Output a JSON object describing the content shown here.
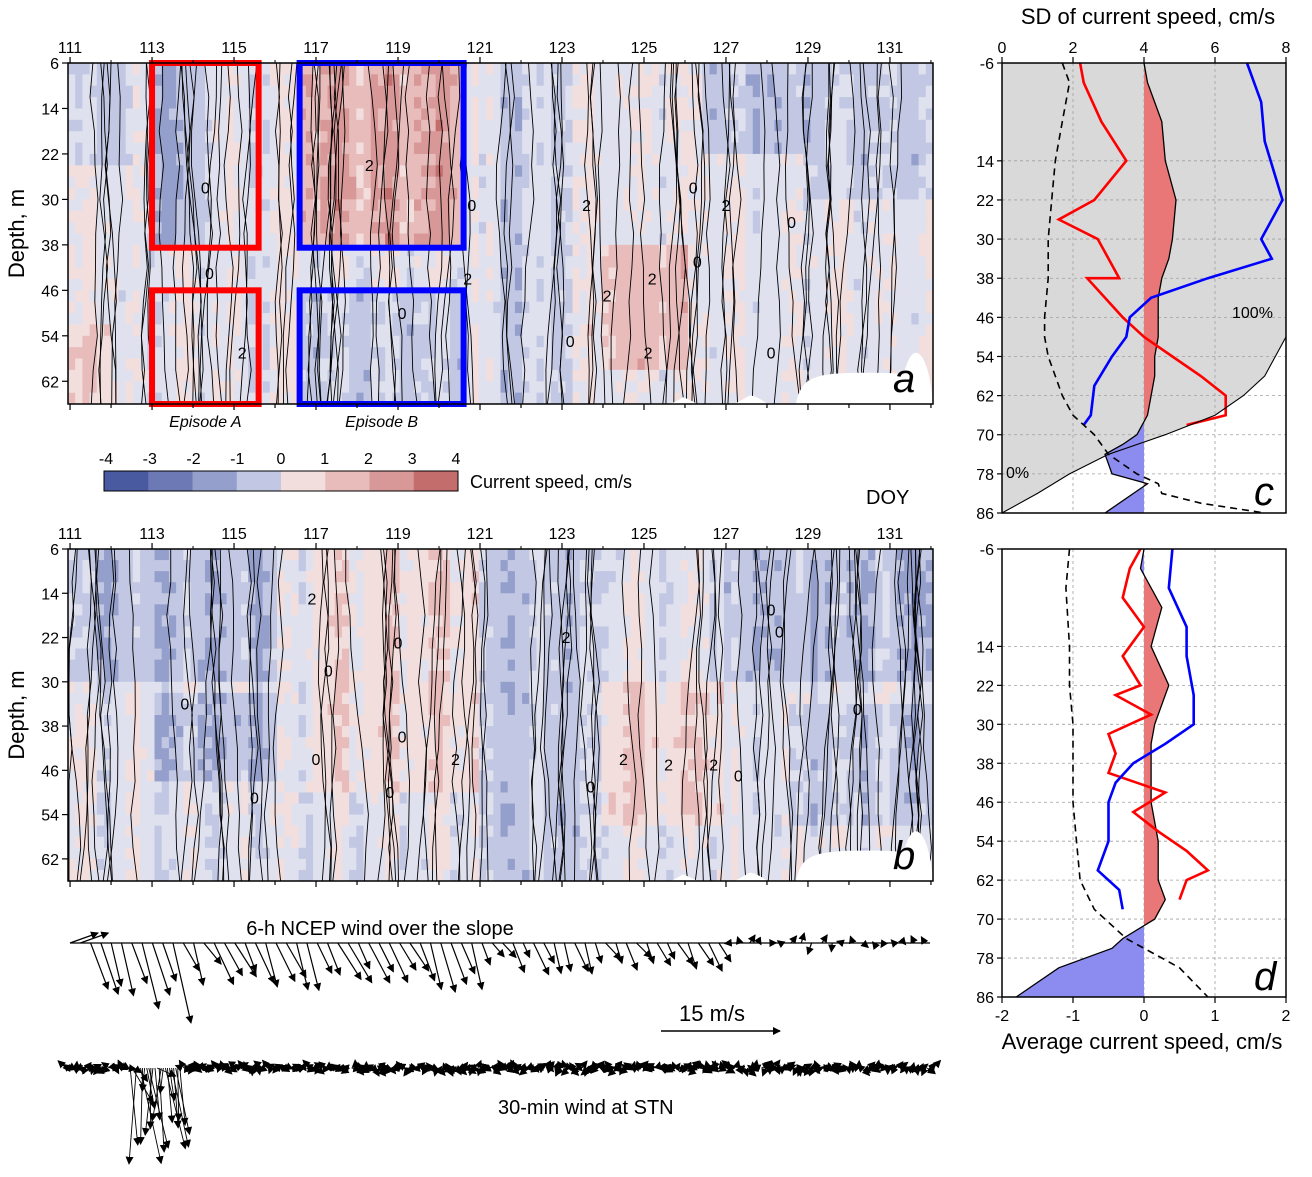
{
  "colors": {
    "neg4": "#4a5aa0",
    "neg3": "#6c79b5",
    "neg2": "#959fcc",
    "neg1": "#c2c8e3",
    "zero": "#dfe1ee",
    "pos1": "#f3dede",
    "pos2": "#e9bcbc",
    "pos3": "#d89898",
    "pos4": "#c46d6d",
    "episode_a": "#ff0000",
    "episode_b": "#0000ff",
    "profile_red": "#ff0000",
    "profile_blue": "#0000ff",
    "fill_pos": "#e97777",
    "fill_neg": "#8c8cf0",
    "shade_grey": "#d9d9d9"
  },
  "labels": {
    "doy": "DOY",
    "depth_axis": "Depth, m",
    "colorbar_title": "Current speed, cm/s",
    "episode_a": "Episode A",
    "episode_b": "Episode B",
    "sd_axis": "SD of current speed, cm/s",
    "avg_axis": "Average current speed, cm/s",
    "pct_100": "100%",
    "pct_0": "0%",
    "wind_ncep": "6-h NCEP wind over the slope",
    "wind_scale": "15 m/s",
    "wind_stn": "30-min wind at STN",
    "panel_a": "a",
    "panel_b": "b",
    "panel_c": "c",
    "panel_d": "d",
    "contour_label_zero": "0",
    "contour_label_two": "2"
  },
  "chart_data": [
    {
      "id": "a",
      "type": "heatmap",
      "x_label": "DOY",
      "ylabel": "Depth, m",
      "x_ticks": [
        111,
        113,
        115,
        117,
        119,
        121,
        123,
        125,
        127,
        129,
        131
      ],
      "xlim": [
        110.95,
        132.05
      ],
      "y_ticks": [
        6,
        14,
        22,
        30,
        38,
        46,
        54,
        62
      ],
      "ylim": [
        6,
        66
      ],
      "colorbar": {
        "title": "Current speed, cm/s",
        "ticks": [
          -4,
          -3,
          -2,
          -1,
          0,
          1,
          2,
          3,
          4
        ]
      },
      "contour_labels": [
        "0",
        "2"
      ],
      "episodes": [
        {
          "label": "Episode A",
          "doy_range": [
            113.0,
            115.6
          ],
          "depth_ranges": [
            [
              6,
              38.5
            ],
            [
              46,
              66
            ]
          ]
        },
        {
          "label": "Episode B",
          "doy_range": [
            116.6,
            120.6
          ],
          "depth_ranges": [
            [
              6,
              38.5
            ],
            [
              46,
              66
            ]
          ]
        }
      ]
    },
    {
      "id": "b",
      "type": "heatmap",
      "ylabel": "Depth, m",
      "x_ticks": [
        111,
        113,
        115,
        117,
        119,
        121,
        123,
        125,
        127,
        129,
        131
      ],
      "xlim": [
        110.95,
        132.05
      ],
      "y_ticks": [
        6,
        14,
        22,
        30,
        38,
        46,
        54,
        62
      ],
      "ylim": [
        6,
        66
      ],
      "contour_labels": [
        "0",
        "2"
      ]
    },
    {
      "id": "c",
      "type": "line",
      "x_label_top": "SD of current speed, cm/s",
      "x_ticks_top": [
        0,
        2,
        4,
        6,
        8
      ],
      "xlim_top": [
        0,
        8
      ],
      "y_ticks": [
        -6,
        14,
        22,
        30,
        38,
        46,
        54,
        62,
        70,
        78,
        86
      ],
      "ylim": [
        -6,
        86
      ],
      "grid": true,
      "annotations": [
        "100%",
        "0%"
      ],
      "series": [
        {
          "style": "red",
          "x": [
            2.2,
            2.3,
            2.8,
            3.5,
            2.6,
            1.6,
            2.7,
            3.3,
            2.4,
            3.4,
            4.0,
            4.8,
            5.6,
            6.3,
            6.3,
            5.2
          ],
          "depth": [
            -6,
            -2,
            6,
            14,
            22,
            26,
            30,
            38,
            38,
            46,
            50,
            54,
            58,
            62,
            66,
            68
          ]
        },
        {
          "style": "blue",
          "x": [
            6.9,
            7.3,
            7.4,
            7.9,
            7.3,
            7.6,
            5.8,
            4.2,
            3.6,
            3.5,
            3.1,
            2.6,
            2.5,
            2.3
          ],
          "depth": [
            -6,
            2,
            10,
            22,
            30,
            34,
            38,
            42,
            46,
            50,
            54,
            60,
            66,
            68
          ]
        },
        {
          "style": "dashed",
          "x": [
            1.7,
            1.9,
            1.7,
            1.5,
            1.4,
            1.3,
            1.3,
            1.2,
            1.2,
            1.3,
            1.5,
            1.7,
            2.0,
            2.6,
            3.0,
            3.8,
            4.4,
            4.5,
            5.6,
            7.4
          ],
          "depth": [
            -6,
            -2,
            6,
            14,
            22,
            30,
            38,
            46,
            50,
            54,
            58,
            62,
            66,
            70,
            74,
            78,
            80,
            82,
            84,
            86
          ]
        },
        {
          "style": "fill-profile",
          "x": [
            0.0,
            0.1,
            0.5,
            0.6,
            0.9,
            0.8,
            0.7,
            0.5,
            0.4,
            0.4,
            0.4,
            0.3,
            0.3,
            0.2,
            0.1,
            -0.2,
            -0.6,
            -1.1,
            -0.9,
            0.1,
            -1.1
          ],
          "depth": [
            -6,
            -2,
            6,
            14,
            22,
            30,
            34,
            38,
            42,
            46,
            50,
            54,
            58,
            62,
            66,
            70,
            72,
            74,
            78,
            80,
            86
          ]
        },
        {
          "style": "cumulative",
          "x": [
            8.0,
            7.7,
            7.4,
            6.8,
            6.0,
            4.6,
            3.0,
            1.9,
            1.0,
            0.0
          ],
          "depth": [
            50,
            54,
            58,
            62,
            66,
            70,
            74,
            78,
            82,
            86
          ]
        }
      ]
    },
    {
      "id": "d",
      "type": "line",
      "x_label": "Average current speed, cm/s",
      "x_ticks": [
        -2,
        -1,
        0,
        1,
        2
      ],
      "xlim": [
        -2,
        2
      ],
      "y_ticks": [
        -6,
        14,
        22,
        30,
        38,
        46,
        54,
        62,
        70,
        78,
        86
      ],
      "ylim": [
        -6,
        86
      ],
      "grid": true,
      "series": [
        {
          "style": "red",
          "x": [
            -0.05,
            -0.2,
            -0.3,
            0.0,
            -0.3,
            -0.05,
            -0.4,
            0.1,
            -0.5,
            -0.4,
            -0.5,
            0.3,
            -0.15,
            0.2,
            0.6,
            0.9,
            0.6,
            0.5
          ],
          "depth": [
            -6,
            -2,
            4,
            10,
            16,
            22,
            24,
            28,
            32,
            36,
            40,
            44,
            48,
            52,
            56,
            60,
            62,
            66
          ]
        },
        {
          "style": "blue",
          "x": [
            0.4,
            0.35,
            0.6,
            0.6,
            0.7,
            0.7,
            0.3,
            -0.15,
            -0.4,
            -0.5,
            -0.5,
            -0.5,
            -0.65,
            -0.35,
            -0.3
          ],
          "depth": [
            -6,
            2,
            10,
            16,
            24,
            30,
            34,
            38,
            42,
            46,
            50,
            54,
            60,
            64,
            68
          ]
        },
        {
          "style": "dashed",
          "x": [
            -1.05,
            -1.1,
            -1.05,
            -1.05,
            -1.0,
            -1.0,
            -1.0,
            -0.95,
            -0.9,
            -0.7,
            -0.4,
            -0.25,
            0.0,
            0.25,
            0.5,
            0.9
          ],
          "depth": [
            -6,
            2,
            14,
            22,
            30,
            38,
            46,
            54,
            62,
            68,
            72,
            74,
            76,
            78,
            80,
            86
          ]
        },
        {
          "style": "fill-profile",
          "x": [
            0.0,
            -0.05,
            0.25,
            0.1,
            0.35,
            0.15,
            0.1,
            0.1,
            0.1,
            0.2,
            0.2,
            0.3,
            0.15,
            -0.3,
            -0.45,
            -1.2,
            -1.8
          ],
          "depth": [
            -6,
            -2,
            6,
            14,
            22,
            30,
            34,
            38,
            46,
            54,
            62,
            66,
            70,
            74,
            76,
            80,
            86
          ]
        }
      ]
    }
  ],
  "wind": {
    "ncep_title": "6-h NCEP wind over the slope",
    "stn_title": "30-min wind at STN",
    "scale_label": "15 m/s"
  }
}
